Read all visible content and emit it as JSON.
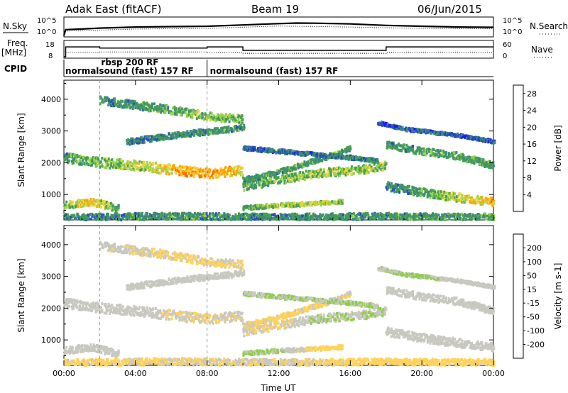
{
  "header": {
    "station": "Adak East (fitACF)",
    "beam": "Beam 19",
    "date": "06/Jun/2015"
  },
  "strip": {
    "nsky_label": "N.Sky",
    "nsearch_label": "N.Search",
    "noise_ticks": [
      "10^5",
      "10^0"
    ],
    "freq_label": "Freq.",
    "freq_unit": "[MHz]",
    "freq_ticks": [
      "18",
      "8"
    ],
    "nave_label": "Nave",
    "nave_ticks": [
      "60",
      "0"
    ],
    "cpid_label": "CPID",
    "cpid_segments": [
      {
        "label": "normalsound (fast) 157 RF",
        "start_h": 0,
        "end_h": 8
      },
      {
        "label": "rbsp 200 RF",
        "start_h": 2,
        "end_h": 2.5
      },
      {
        "label": "normalsound (fast) 157 RF",
        "start_h": 8,
        "end_h": 24
      }
    ]
  },
  "colors": {
    "power": [
      "#1a1aff",
      "#2850b4",
      "#3c8c78",
      "#46a050",
      "#9bd24b",
      "#f0d23c",
      "#ffa500",
      "#ff6a00",
      "#ff0000"
    ],
    "velocity": [
      "#ff0000",
      "#ff6400",
      "#ffa500",
      "#ffd25a",
      "#c8c8c0",
      "#8ccd46",
      "#3c963c",
      "#2850b4",
      "#1a1aff"
    ]
  },
  "chart_data": [
    {
      "type": "line",
      "title": "N.Sky / N.Search",
      "x_range_h": [
        0,
        24
      ],
      "y_scale": "log",
      "y_ticks": [
        "10^0",
        "10^5"
      ],
      "series": [
        {
          "name": "N.Sky",
          "x": [
            0,
            0.1,
            1,
            2,
            4,
            6,
            8,
            10,
            11,
            12,
            13,
            14,
            16,
            18,
            20,
            22,
            24
          ],
          "y": [
            1,
            50,
            80,
            150,
            300,
            400,
            500,
            1200,
            2000,
            3000,
            4500,
            4000,
            2500,
            900,
            500,
            300,
            250
          ]
        },
        {
          "name": "N.Search",
          "x": [
            0,
            0.1,
            4,
            8,
            12,
            16,
            20,
            24
          ],
          "y": [
            1,
            20,
            80,
            120,
            600,
            300,
            120,
            90
          ]
        }
      ]
    },
    {
      "type": "line",
      "title": "Freq. / Nave",
      "x_range_h": [
        0,
        24
      ],
      "series": [
        {
          "name": "Freq. [MHz]",
          "x": [
            0,
            0.1,
            0.1,
            2.0,
            2.0,
            8.0,
            8.0,
            10.0,
            10.0,
            18.0,
            18.0,
            24
          ],
          "y": [
            8,
            8,
            14.6,
            14.6,
            13.8,
            13.8,
            14.6,
            14.6,
            12.3,
            12.3,
            14.6,
            14.6
          ]
        },
        {
          "name": "Nave",
          "x": [
            0.1,
            2.0,
            2.0,
            8.0,
            8.0,
            10.0,
            10.0,
            18.0,
            18.0,
            24
          ],
          "y": [
            17,
            17,
            19,
            19,
            17,
            17,
            14,
            14,
            17,
            17
          ]
        }
      ]
    },
    {
      "type": "heatmap",
      "title": "Power [dB]",
      "xlabel": "",
      "ylabel": "Slant Range [km]",
      "x_ticks": [
        "00:00",
        "04:00",
        "08:00",
        "12:00",
        "16:00",
        "20:00",
        "00:00"
      ],
      "x_range_h": [
        0,
        24
      ],
      "y_range_km": [
        200,
        4600
      ],
      "y_ticks": [
        1000,
        2000,
        3000,
        4000
      ],
      "colorbar_label": "Power [dB]",
      "colorbar_ticks": [
        4,
        8,
        12,
        16,
        20,
        24,
        28
      ],
      "colorbar_range": [
        0,
        30
      ],
      "bands": [
        {
          "x": [
            0,
            1.5,
            3.0
          ],
          "y": [
            700,
            820,
            600
          ],
          "w": 220,
          "v": [
            14,
            20,
            12
          ]
        },
        {
          "x": [
            0,
            2,
            4,
            6,
            8,
            9.9
          ],
          "y": [
            2200,
            2050,
            1950,
            1820,
            1700,
            1800
          ],
          "w": 300,
          "v": [
            10,
            13,
            16,
            20,
            22,
            19
          ]
        },
        {
          "x": [
            2,
            4,
            6,
            8,
            10
          ],
          "y": [
            4000,
            3850,
            3700,
            3500,
            3400
          ],
          "w": 250,
          "v": [
            8,
            10,
            12,
            14,
            12
          ]
        },
        {
          "x": [
            3.5,
            6,
            8.5,
            10
          ],
          "y": [
            2700,
            2900,
            3050,
            3150
          ],
          "w": 180,
          "v": [
            8,
            9,
            10,
            10
          ]
        },
        {
          "x": [
            10,
            12,
            14,
            17,
            18
          ],
          "y": [
            1300,
            1500,
            1700,
            1850,
            1950
          ],
          "w": 260,
          "v": [
            11,
            13,
            14,
            15,
            13
          ]
        },
        {
          "x": [
            10,
            12,
            14.5,
            16
          ],
          "y": [
            1500,
            1750,
            2200,
            2500
          ],
          "w": 150,
          "v": [
            9,
            10,
            11,
            10
          ]
        },
        {
          "x": [
            10,
            12,
            14,
            15.5
          ],
          "y": [
            620,
            700,
            760,
            820
          ],
          "w": 120,
          "v": [
            12,
            15,
            16,
            14
          ]
        },
        {
          "x": [
            10,
            12,
            14,
            16,
            17.5
          ],
          "y": [
            2500,
            2400,
            2300,
            2200,
            2100
          ],
          "w": 120,
          "v": [
            6,
            7,
            7,
            8,
            8
          ]
        },
        {
          "x": [
            18,
            20,
            22,
            24
          ],
          "y": [
            2600,
            2400,
            2250,
            1950
          ],
          "w": 220,
          "v": [
            9,
            11,
            12,
            10
          ]
        },
        {
          "x": [
            18,
            20,
            22,
            24
          ],
          "y": [
            1300,
            1100,
            950,
            800
          ],
          "w": 260,
          "v": [
            8,
            11,
            16,
            20
          ]
        },
        {
          "x": [
            17.5,
            19,
            22,
            24
          ],
          "y": [
            3300,
            3100,
            2900,
            2700
          ],
          "w": 100,
          "v": [
            5,
            6,
            6,
            5
          ]
        },
        {
          "x": [
            0,
            6,
            12,
            18,
            24
          ],
          "y": [
            330,
            360,
            330,
            360,
            330
          ],
          "w": 200,
          "v": [
            9,
            10,
            9,
            10,
            11
          ]
        }
      ]
    },
    {
      "type": "heatmap",
      "title": "Velocity [m s-1]",
      "xlabel": "Time UT",
      "ylabel": "Slant Range [km]",
      "x_ticks": [
        "00:00",
        "04:00",
        "08:00",
        "12:00",
        "16:00",
        "20:00",
        "00:00"
      ],
      "x_range_h": [
        0,
        24
      ],
      "y_range_km": [
        200,
        4600
      ],
      "y_ticks": [
        1000,
        2000,
        3000,
        4000
      ],
      "colorbar_label": "Velocity [m s-1]",
      "colorbar_ticks": [
        -200,
        -100,
        -50,
        -15,
        15,
        50,
        100,
        200
      ],
      "colorbar_range": [
        -250,
        250
      ],
      "bands": [
        {
          "x": [
            0,
            1.5,
            3.0
          ],
          "y": [
            700,
            820,
            600
          ],
          "w": 220,
          "v": [
            0,
            0,
            5
          ]
        },
        {
          "x": [
            0,
            2,
            4,
            6,
            8,
            9.9
          ],
          "y": [
            2200,
            2050,
            1950,
            1820,
            1700,
            1800
          ],
          "w": 300,
          "v": [
            0,
            -5,
            0,
            -20,
            -30,
            -10
          ]
        },
        {
          "x": [
            2,
            4,
            6,
            8,
            10
          ],
          "y": [
            4000,
            3850,
            3700,
            3500,
            3400
          ],
          "w": 250,
          "v": [
            -5,
            -20,
            -30,
            -40,
            -30
          ]
        },
        {
          "x": [
            3.5,
            6,
            8.5,
            10
          ],
          "y": [
            2700,
            2900,
            3050,
            3150
          ],
          "w": 180,
          "v": [
            0,
            -5,
            0,
            0
          ]
        },
        {
          "x": [
            10,
            12,
            14,
            17,
            18
          ],
          "y": [
            1300,
            1500,
            1700,
            1850,
            1950
          ],
          "w": 260,
          "v": [
            -10,
            -40,
            20,
            25,
            10
          ]
        },
        {
          "x": [
            10,
            12,
            14.5,
            16
          ],
          "y": [
            1500,
            1750,
            2200,
            2500
          ],
          "w": 150,
          "v": [
            -30,
            -45,
            -30,
            -20
          ]
        },
        {
          "x": [
            10,
            12,
            14,
            15.5
          ],
          "y": [
            620,
            700,
            760,
            820
          ],
          "w": 120,
          "v": [
            40,
            30,
            -50,
            -60
          ]
        },
        {
          "x": [
            10,
            12,
            14,
            16,
            17.5
          ],
          "y": [
            2500,
            2400,
            2300,
            2200,
            2100
          ],
          "w": 120,
          "v": [
            20,
            30,
            25,
            30,
            20
          ]
        },
        {
          "x": [
            18,
            20,
            22,
            24
          ],
          "y": [
            2600,
            2400,
            2250,
            1950
          ],
          "w": 220,
          "v": [
            0,
            -5,
            0,
            0
          ]
        },
        {
          "x": [
            18,
            20,
            22,
            24
          ],
          "y": [
            1300,
            1100,
            950,
            800
          ],
          "w": 260,
          "v": [
            0,
            -10,
            0,
            -5
          ]
        },
        {
          "x": [
            17.5,
            19,
            22,
            24
          ],
          "y": [
            3300,
            3100,
            2900,
            2700
          ],
          "w": 100,
          "v": [
            20,
            40,
            10,
            5
          ]
        },
        {
          "x": [
            0,
            6,
            12,
            18,
            24
          ],
          "y": [
            330,
            360,
            330,
            360,
            330
          ],
          "w": 200,
          "v": [
            -40,
            -30,
            -20,
            -60,
            -45
          ]
        }
      ]
    }
  ]
}
